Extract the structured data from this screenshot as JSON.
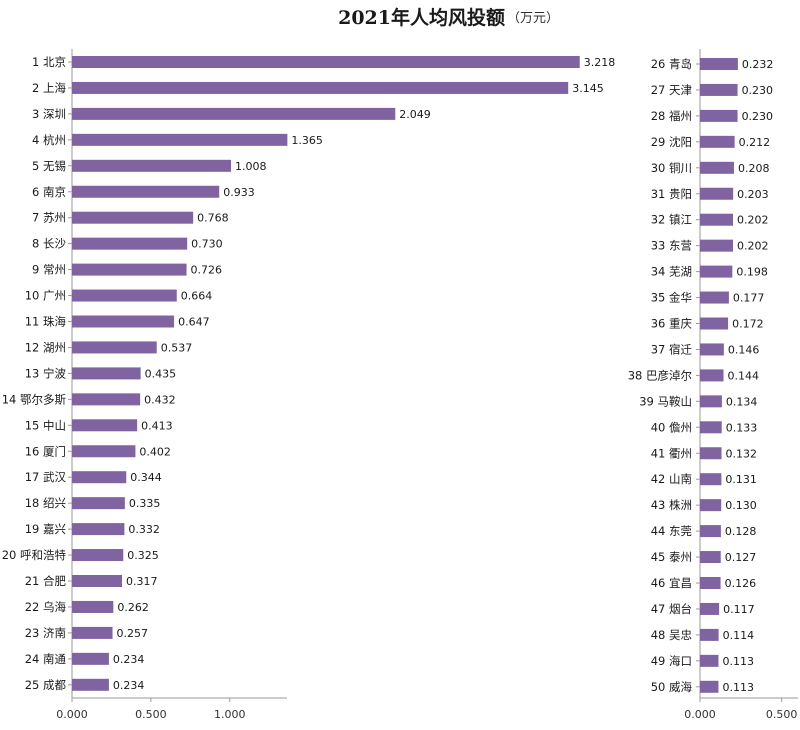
{
  "chart_data": [
    {
      "type": "bar",
      "orientation": "horizontal",
      "title": "2021年人均风投额",
      "title_unit": "（万元）",
      "xlim": [
        0,
        1.35
      ],
      "xticks": [
        "0.000",
        "0.500",
        "1.000"
      ],
      "bar_color": "#8064a2",
      "categories": [
        "1 北京",
        "2 上海",
        "3 深圳",
        "4 杭州",
        "5 无锡",
        "6 南京",
        "7 苏州",
        "8 长沙",
        "9 常州",
        "10 广州",
        "11 珠海",
        "12 湖州",
        "13 宁波",
        "14 鄂尔多斯",
        "15 中山",
        "16 厦门",
        "17 武汉",
        "18 绍兴",
        "19 嘉兴",
        "20 呼和浩特",
        "21 合肥",
        "22 乌海",
        "23 济南",
        "24 南通",
        "25 成都"
      ],
      "values": [
        3.218,
        3.145,
        2.049,
        1.365,
        1.008,
        0.933,
        0.768,
        0.73,
        0.726,
        0.664,
        0.647,
        0.537,
        0.435,
        0.432,
        0.413,
        0.402,
        0.344,
        0.335,
        0.332,
        0.325,
        0.317,
        0.262,
        0.257,
        0.234,
        0.234
      ],
      "value_labels": [
        "3.218",
        "3.145",
        "2.049",
        "1.365",
        "1.008",
        "0.933",
        "0.768",
        "0.730",
        "0.726",
        "0.664",
        "0.647",
        "0.537",
        "0.435",
        "0.432",
        "0.413",
        "0.402",
        "0.344",
        "0.335",
        "0.332",
        "0.325",
        "0.317",
        "0.262",
        "0.257",
        "0.234",
        "0.234"
      ]
    },
    {
      "type": "bar",
      "orientation": "horizontal",
      "xlim": [
        0,
        0.6
      ],
      "xticks": [
        "0.000",
        "0.500"
      ],
      "bar_color": "#8064a2",
      "categories": [
        "26 青岛",
        "27 天津",
        "28 福州",
        "29 沈阳",
        "30 铜川",
        "31 贵阳",
        "32 镇江",
        "33 东营",
        "34 芜湖",
        "35 金华",
        "36 重庆",
        "37 宿迁",
        "38 巴彦淖尔",
        "39 马鞍山",
        "40 儋州",
        "41 衢州",
        "42 山南",
        "43 株洲",
        "44 东莞",
        "45 泰州",
        "46 宜昌",
        "47 烟台",
        "48 吴忠",
        "49 海口",
        "50 威海"
      ],
      "values": [
        0.232,
        0.23,
        0.23,
        0.212,
        0.208,
        0.203,
        0.202,
        0.202,
        0.198,
        0.177,
        0.172,
        0.146,
        0.144,
        0.134,
        0.133,
        0.132,
        0.131,
        0.13,
        0.128,
        0.127,
        0.126,
        0.117,
        0.114,
        0.113,
        0.113
      ],
      "value_labels": [
        "0.232",
        "0.230",
        "0.230",
        "0.212",
        "0.208",
        "0.203",
        "0.202",
        "0.202",
        "0.198",
        "0.177",
        "0.172",
        "0.146",
        "0.144",
        "0.134",
        "0.133",
        "0.132",
        "0.131",
        "0.130",
        "0.128",
        "0.127",
        "0.126",
        "0.117",
        "0.114",
        "0.113",
        "0.113"
      ]
    }
  ]
}
